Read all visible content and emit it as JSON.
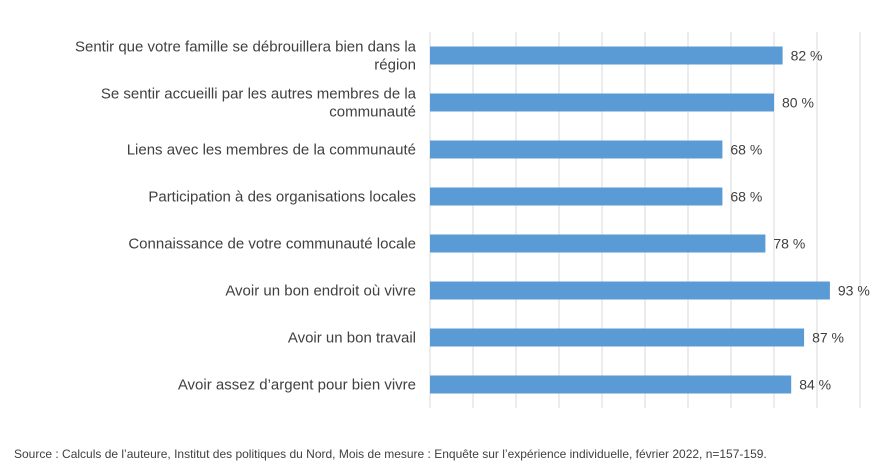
{
  "chart_data": {
    "type": "bar",
    "orientation": "horizontal",
    "categories": [
      "Sentir que votre famille se débrouillera bien dans la région",
      "Se sentir accueilli par les autres membres de la communauté",
      "Liens avec les membres de la communauté",
      "Participation à des organisations locales",
      "Connaissance de votre communauté locale",
      "Avoir un bon endroit où vivre",
      "Avoir un bon travail",
      "Avoir assez d’argent pour bien vivre"
    ],
    "category_lines": [
      [
        "Sentir que votre famille se débrouillera bien dans la",
        "région"
      ],
      [
        "Se sentir accueilli par les autres membres de la",
        "communauté"
      ],
      [
        "Liens avec les membres de la communauté"
      ],
      [
        "Participation à des organisations locales"
      ],
      [
        "Connaissance de votre communauté locale"
      ],
      [
        "Avoir un bon endroit où vivre"
      ],
      [
        "Avoir un bon travail"
      ],
      [
        "Avoir assez d’argent pour bien vivre"
      ]
    ],
    "values": [
      82,
      80,
      68,
      68,
      78,
      93,
      87,
      84
    ],
    "value_labels": [
      "82 %",
      "80 %",
      "68 %",
      "68 %",
      "78 %",
      "93 %",
      "87 %",
      "84 %"
    ],
    "xlim": [
      0,
      100
    ],
    "gridlines": "vertical",
    "legend": "none",
    "colors": {
      "bar": "#5b9bd5",
      "grid": "#d9d9d9",
      "text": "#404040"
    }
  },
  "source_note": "Source : Calculs de l’auteure, Institut des politiques du Nord, Mois de mesure : Enquête sur l’expérience individuelle, février 2022, n=157-159."
}
